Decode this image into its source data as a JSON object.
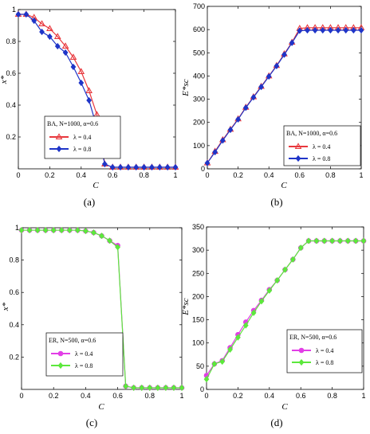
{
  "chart_data": [
    {
      "id": "a",
      "caption": "(a)",
      "type": "line",
      "xlabel": "C",
      "ylabel": "x*",
      "xlim": [
        0,
        1
      ],
      "ylim": [
        0,
        1
      ],
      "xticks": [
        "0",
        "0.2",
        "0.4",
        "0.6",
        "0.8",
        "1"
      ],
      "yticks": [
        "0.2",
        "0.4",
        "0.6",
        "0.8",
        "1"
      ],
      "legend_title": "BA, N=1000, α=0.6",
      "legend_position": "bottom-left",
      "series": [
        {
          "name": "λ = 0.4",
          "color": "#e8383d",
          "marker": "triangle",
          "x": [
            0,
            0.05,
            0.1,
            0.15,
            0.2,
            0.25,
            0.3,
            0.35,
            0.4,
            0.45,
            0.5,
            0.55,
            0.6,
            0.65,
            0.7,
            0.75,
            0.8,
            0.85,
            0.9,
            0.95,
            1
          ],
          "y": [
            0.97,
            0.97,
            0.95,
            0.91,
            0.88,
            0.83,
            0.77,
            0.7,
            0.61,
            0.49,
            0.34,
            0.03,
            0.01,
            0.01,
            0.01,
            0.01,
            0.01,
            0.01,
            0.01,
            0.01,
            0.01
          ]
        },
        {
          "name": "λ = 0.8",
          "color": "#1f35c8",
          "marker": "diamond",
          "x": [
            0,
            0.05,
            0.1,
            0.15,
            0.2,
            0.25,
            0.3,
            0.35,
            0.4,
            0.45,
            0.5,
            0.55,
            0.6,
            0.65,
            0.7,
            0.75,
            0.8,
            0.85,
            0.9,
            0.95,
            1
          ],
          "y": [
            0.97,
            0.97,
            0.93,
            0.86,
            0.83,
            0.77,
            0.73,
            0.64,
            0.54,
            0.43,
            0.26,
            0.03,
            0.01,
            0.01,
            0.01,
            0.01,
            0.01,
            0.01,
            0.01,
            0.01,
            0.01
          ]
        }
      ]
    },
    {
      "id": "b",
      "caption": "(b)",
      "type": "line",
      "xlabel": "C",
      "ylabel": "E*sc",
      "xlim": [
        0,
        1
      ],
      "ylim": [
        0,
        700
      ],
      "xticks": [
        "0",
        "0.2",
        "0.4",
        "0.6",
        "0.8",
        "1"
      ],
      "yticks": [
        "0",
        "100",
        "200",
        "300",
        "400",
        "500",
        "600",
        "700"
      ],
      "legend_title": "BA, N=1000, α=0.6",
      "legend_position": "bottom-right",
      "series": [
        {
          "name": "λ = 0.4",
          "color": "#e8383d",
          "marker": "triangle",
          "x": [
            0,
            0.05,
            0.1,
            0.15,
            0.2,
            0.25,
            0.3,
            0.35,
            0.4,
            0.45,
            0.5,
            0.55,
            0.6,
            0.65,
            0.7,
            0.75,
            0.8,
            0.85,
            0.9,
            0.95,
            1
          ],
          "y": [
            25,
            75,
            125,
            170,
            215,
            265,
            310,
            355,
            400,
            445,
            495,
            545,
            605,
            608,
            608,
            608,
            608,
            608,
            608,
            608,
            608
          ]
        },
        {
          "name": "λ = 0.8",
          "color": "#1f35c8",
          "marker": "diamond",
          "x": [
            0,
            0.05,
            0.1,
            0.15,
            0.2,
            0.25,
            0.3,
            0.35,
            0.4,
            0.45,
            0.5,
            0.55,
            0.6,
            0.65,
            0.7,
            0.75,
            0.8,
            0.85,
            0.9,
            0.95,
            1
          ],
          "y": [
            25,
            72,
            122,
            168,
            213,
            263,
            308,
            353,
            398,
            443,
            492,
            543,
            595,
            597,
            597,
            597,
            597,
            597,
            597,
            597,
            597
          ]
        }
      ]
    },
    {
      "id": "c",
      "caption": "(c)",
      "type": "line",
      "xlabel": "C",
      "ylabel": "x*",
      "xlim": [
        0,
        1
      ],
      "ylim": [
        0,
        1
      ],
      "xticks": [
        "0",
        "0.2",
        "0.4",
        "0.6",
        "0.8",
        "1"
      ],
      "yticks": [
        "0.2",
        "0.4",
        "0.6",
        "0.8",
        "1"
      ],
      "legend_title": "ER, N=500, α=0.6",
      "legend_position": "bottom-left",
      "series": [
        {
          "name": "λ = 0.4",
          "color": "#e23ee6",
          "marker": "circle",
          "x": [
            0,
            0.05,
            0.1,
            0.15,
            0.2,
            0.25,
            0.3,
            0.35,
            0.4,
            0.45,
            0.5,
            0.55,
            0.6,
            0.65,
            0.7,
            0.75,
            0.8,
            0.85,
            0.9,
            0.95,
            1
          ],
          "y": [
            0.985,
            0.985,
            0.985,
            0.985,
            0.985,
            0.985,
            0.985,
            0.985,
            0.98,
            0.97,
            0.95,
            0.92,
            0.89,
            0.02,
            0.01,
            0.01,
            0.01,
            0.01,
            0.01,
            0.01,
            0.01
          ]
        },
        {
          "name": "λ = 0.8",
          "color": "#5ce83c",
          "marker": "diamond",
          "x": [
            0,
            0.05,
            0.1,
            0.15,
            0.2,
            0.25,
            0.3,
            0.35,
            0.4,
            0.45,
            0.5,
            0.55,
            0.6,
            0.65,
            0.7,
            0.75,
            0.8,
            0.85,
            0.9,
            0.95,
            1
          ],
          "y": [
            0.985,
            0.985,
            0.985,
            0.985,
            0.985,
            0.985,
            0.985,
            0.985,
            0.98,
            0.97,
            0.95,
            0.92,
            0.88,
            0.02,
            0.01,
            0.01,
            0.01,
            0.01,
            0.01,
            0.01,
            0.01
          ]
        }
      ]
    },
    {
      "id": "d",
      "caption": "(d)",
      "type": "line",
      "xlabel": "C",
      "ylabel": "E*sc",
      "xlim": [
        0,
        1
      ],
      "ylim": [
        0,
        350
      ],
      "xticks": [
        "0",
        "0.2",
        "0.4",
        "0.6",
        "0.8",
        "1"
      ],
      "yticks": [
        "0",
        "50",
        "100",
        "150",
        "200",
        "250",
        "300",
        "350"
      ],
      "legend_title": "ER, N=500, α=0.6",
      "legend_position": "bottom-right",
      "series": [
        {
          "name": "λ = 0.4",
          "color": "#e23ee6",
          "marker": "circle",
          "x": [
            0,
            0.05,
            0.1,
            0.15,
            0.2,
            0.25,
            0.3,
            0.35,
            0.4,
            0.45,
            0.5,
            0.55,
            0.6,
            0.65,
            0.7,
            0.75,
            0.8,
            0.85,
            0.9,
            0.95,
            1
          ],
          "y": [
            30,
            55,
            62,
            90,
            118,
            145,
            170,
            192,
            215,
            235,
            258,
            280,
            305,
            320,
            320,
            320,
            320,
            320,
            320,
            320,
            320
          ]
        },
        {
          "name": "λ = 0.8",
          "color": "#5ce83c",
          "marker": "diamond",
          "x": [
            0,
            0.05,
            0.1,
            0.15,
            0.2,
            0.25,
            0.3,
            0.35,
            0.4,
            0.45,
            0.5,
            0.55,
            0.6,
            0.65,
            0.7,
            0.75,
            0.8,
            0.85,
            0.9,
            0.95,
            1
          ],
          "y": [
            22,
            55,
            60,
            86,
            112,
            138,
            165,
            190,
            213,
            235,
            258,
            280,
            305,
            320,
            320,
            320,
            320,
            320,
            320,
            320,
            320
          ]
        }
      ]
    }
  ]
}
